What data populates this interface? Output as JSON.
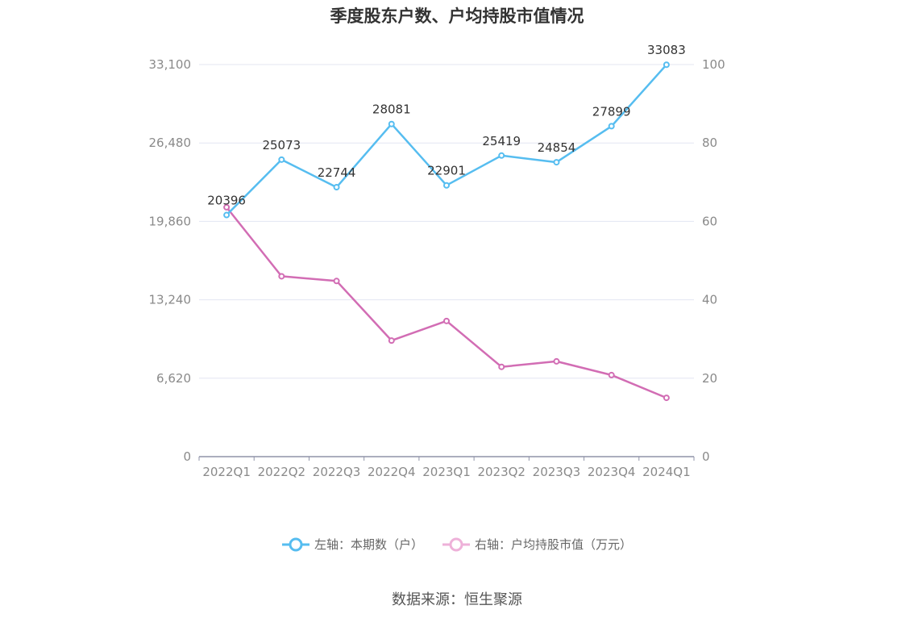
{
  "title": "季度股东户数、户均持股市值情况",
  "source": "数据来源：恒生聚源",
  "legend": [
    {
      "label": "左轴：本期数（户）",
      "color": "#56bdf0"
    },
    {
      "label": "右轴：户均持股市值（万元）",
      "color": "#d26db4"
    }
  ],
  "chart_data": {
    "type": "line",
    "categories": [
      "2022Q1",
      "2022Q2",
      "2022Q3",
      "2022Q4",
      "2023Q1",
      "2023Q2",
      "2023Q3",
      "2023Q4",
      "2024Q1"
    ],
    "left_axis": {
      "ticks": [
        "0",
        "6,620",
        "13,240",
        "19,860",
        "26,480",
        "33,100"
      ],
      "ylim": [
        0,
        33100
      ]
    },
    "right_axis": {
      "ticks": [
        "0",
        "20",
        "40",
        "60",
        "80",
        "100"
      ],
      "ylim": [
        0,
        100
      ]
    },
    "series": [
      {
        "name": "左轴：本期数（户）",
        "axis": "left",
        "color": "#56bdf0",
        "values": [
          20396,
          25073,
          22744,
          28081,
          22901,
          25419,
          24854,
          27899,
          33083
        ],
        "labels": [
          "20396",
          "25073",
          "22744",
          "28081",
          "22901",
          "25419",
          "24854",
          "27899",
          "33083"
        ]
      },
      {
        "name": "右轴：户均持股市值（万元）",
        "axis": "right",
        "color": "#d26db4",
        "values": [
          63.6,
          46.0,
          44.8,
          29.6,
          34.6,
          22.9,
          24.3,
          20.8,
          15.0
        ]
      }
    ],
    "grid": true
  }
}
